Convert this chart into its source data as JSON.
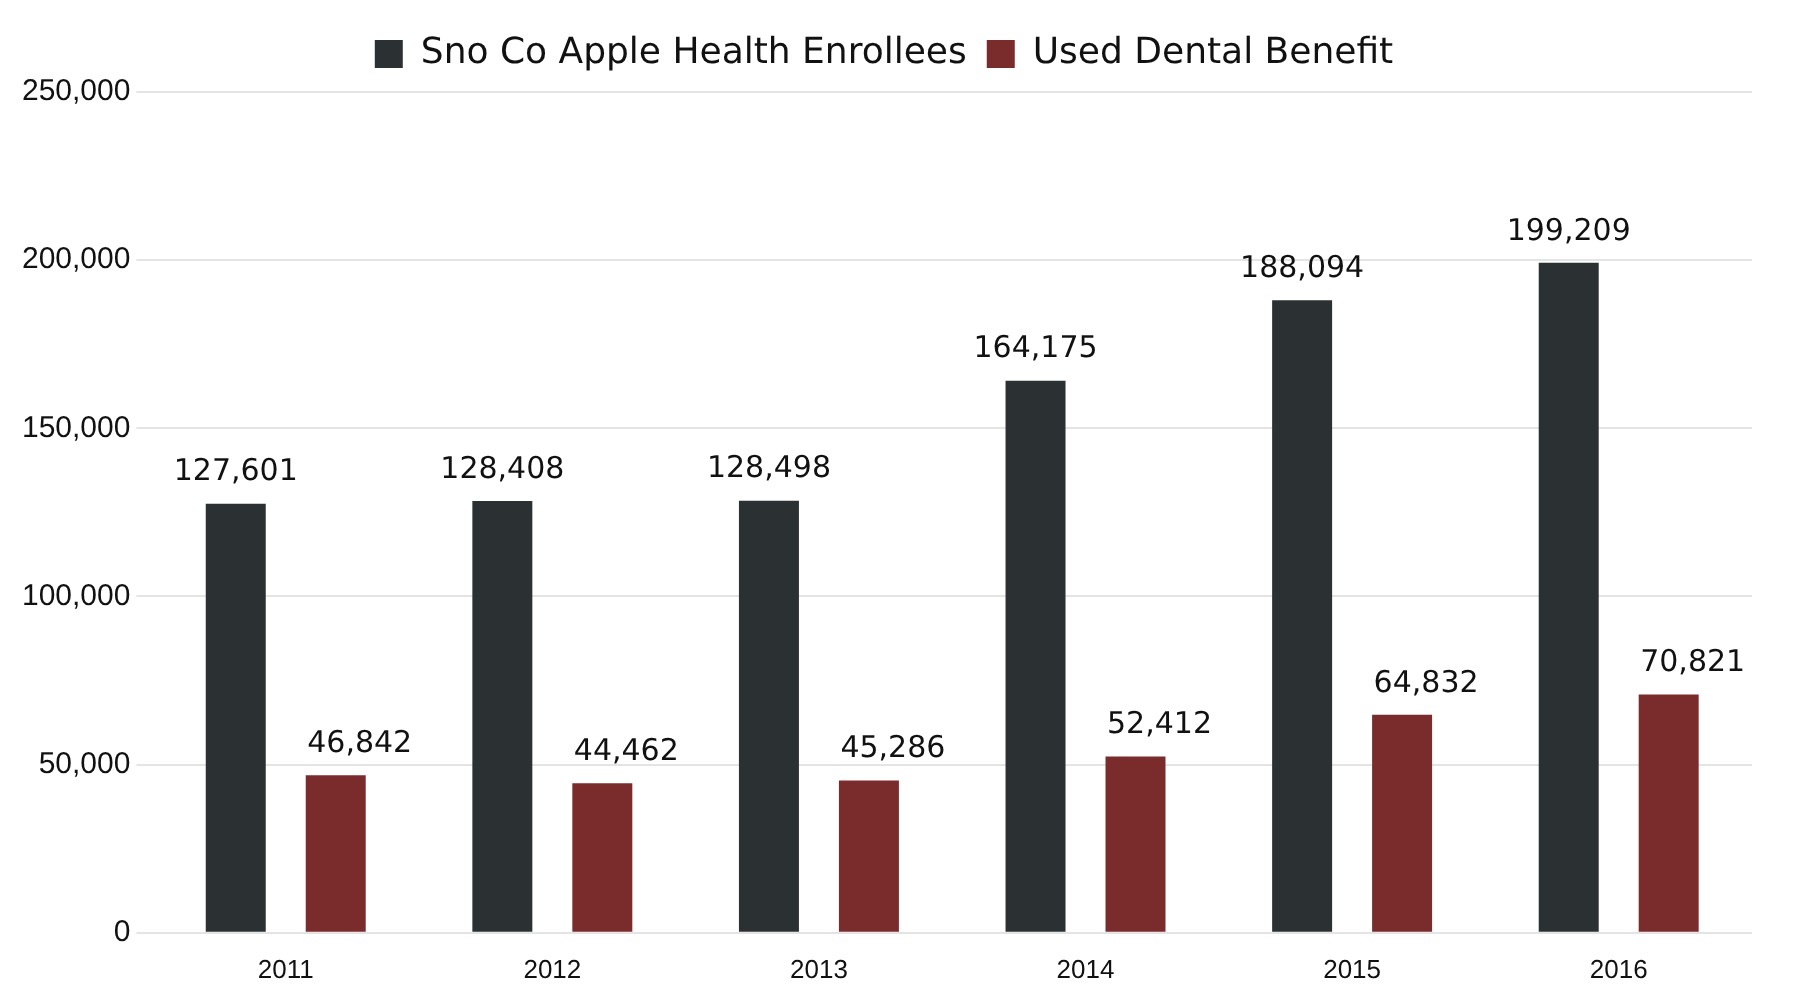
{
  "chart_data": {
    "type": "bar",
    "categories": [
      "2011",
      "2012",
      "2013",
      "2014",
      "2015",
      "2016"
    ],
    "series": [
      {
        "name": "Sno Co Apple Health Enrollees",
        "color": "#2b3033",
        "values": [
          127601,
          128408,
          128498,
          164175,
          188094,
          199209
        ],
        "value_labels": [
          "127,601",
          "128,408",
          "128,498",
          "164,175",
          "188,094",
          "199,209"
        ]
      },
      {
        "name": "Used Dental Benefit",
        "color": "#7a2b2b",
        "values": [
          46842,
          44462,
          45286,
          52412,
          64832,
          70821
        ],
        "value_labels": [
          "46,842",
          "44,462",
          "45,286",
          "52,412",
          "64,832",
          "70,821"
        ]
      }
    ],
    "ylim": [
      0,
      250000
    ],
    "yticks": [
      {
        "value": 0,
        "label": "0"
      },
      {
        "value": 50000,
        "label": "50,000"
      },
      {
        "value": 100000,
        "label": "100,000"
      },
      {
        "value": 150000,
        "label": "150,000"
      },
      {
        "value": 200000,
        "label": "200,000"
      },
      {
        "value": 250000,
        "label": "250,000"
      }
    ],
    "grid": "y",
    "legend": "top"
  }
}
